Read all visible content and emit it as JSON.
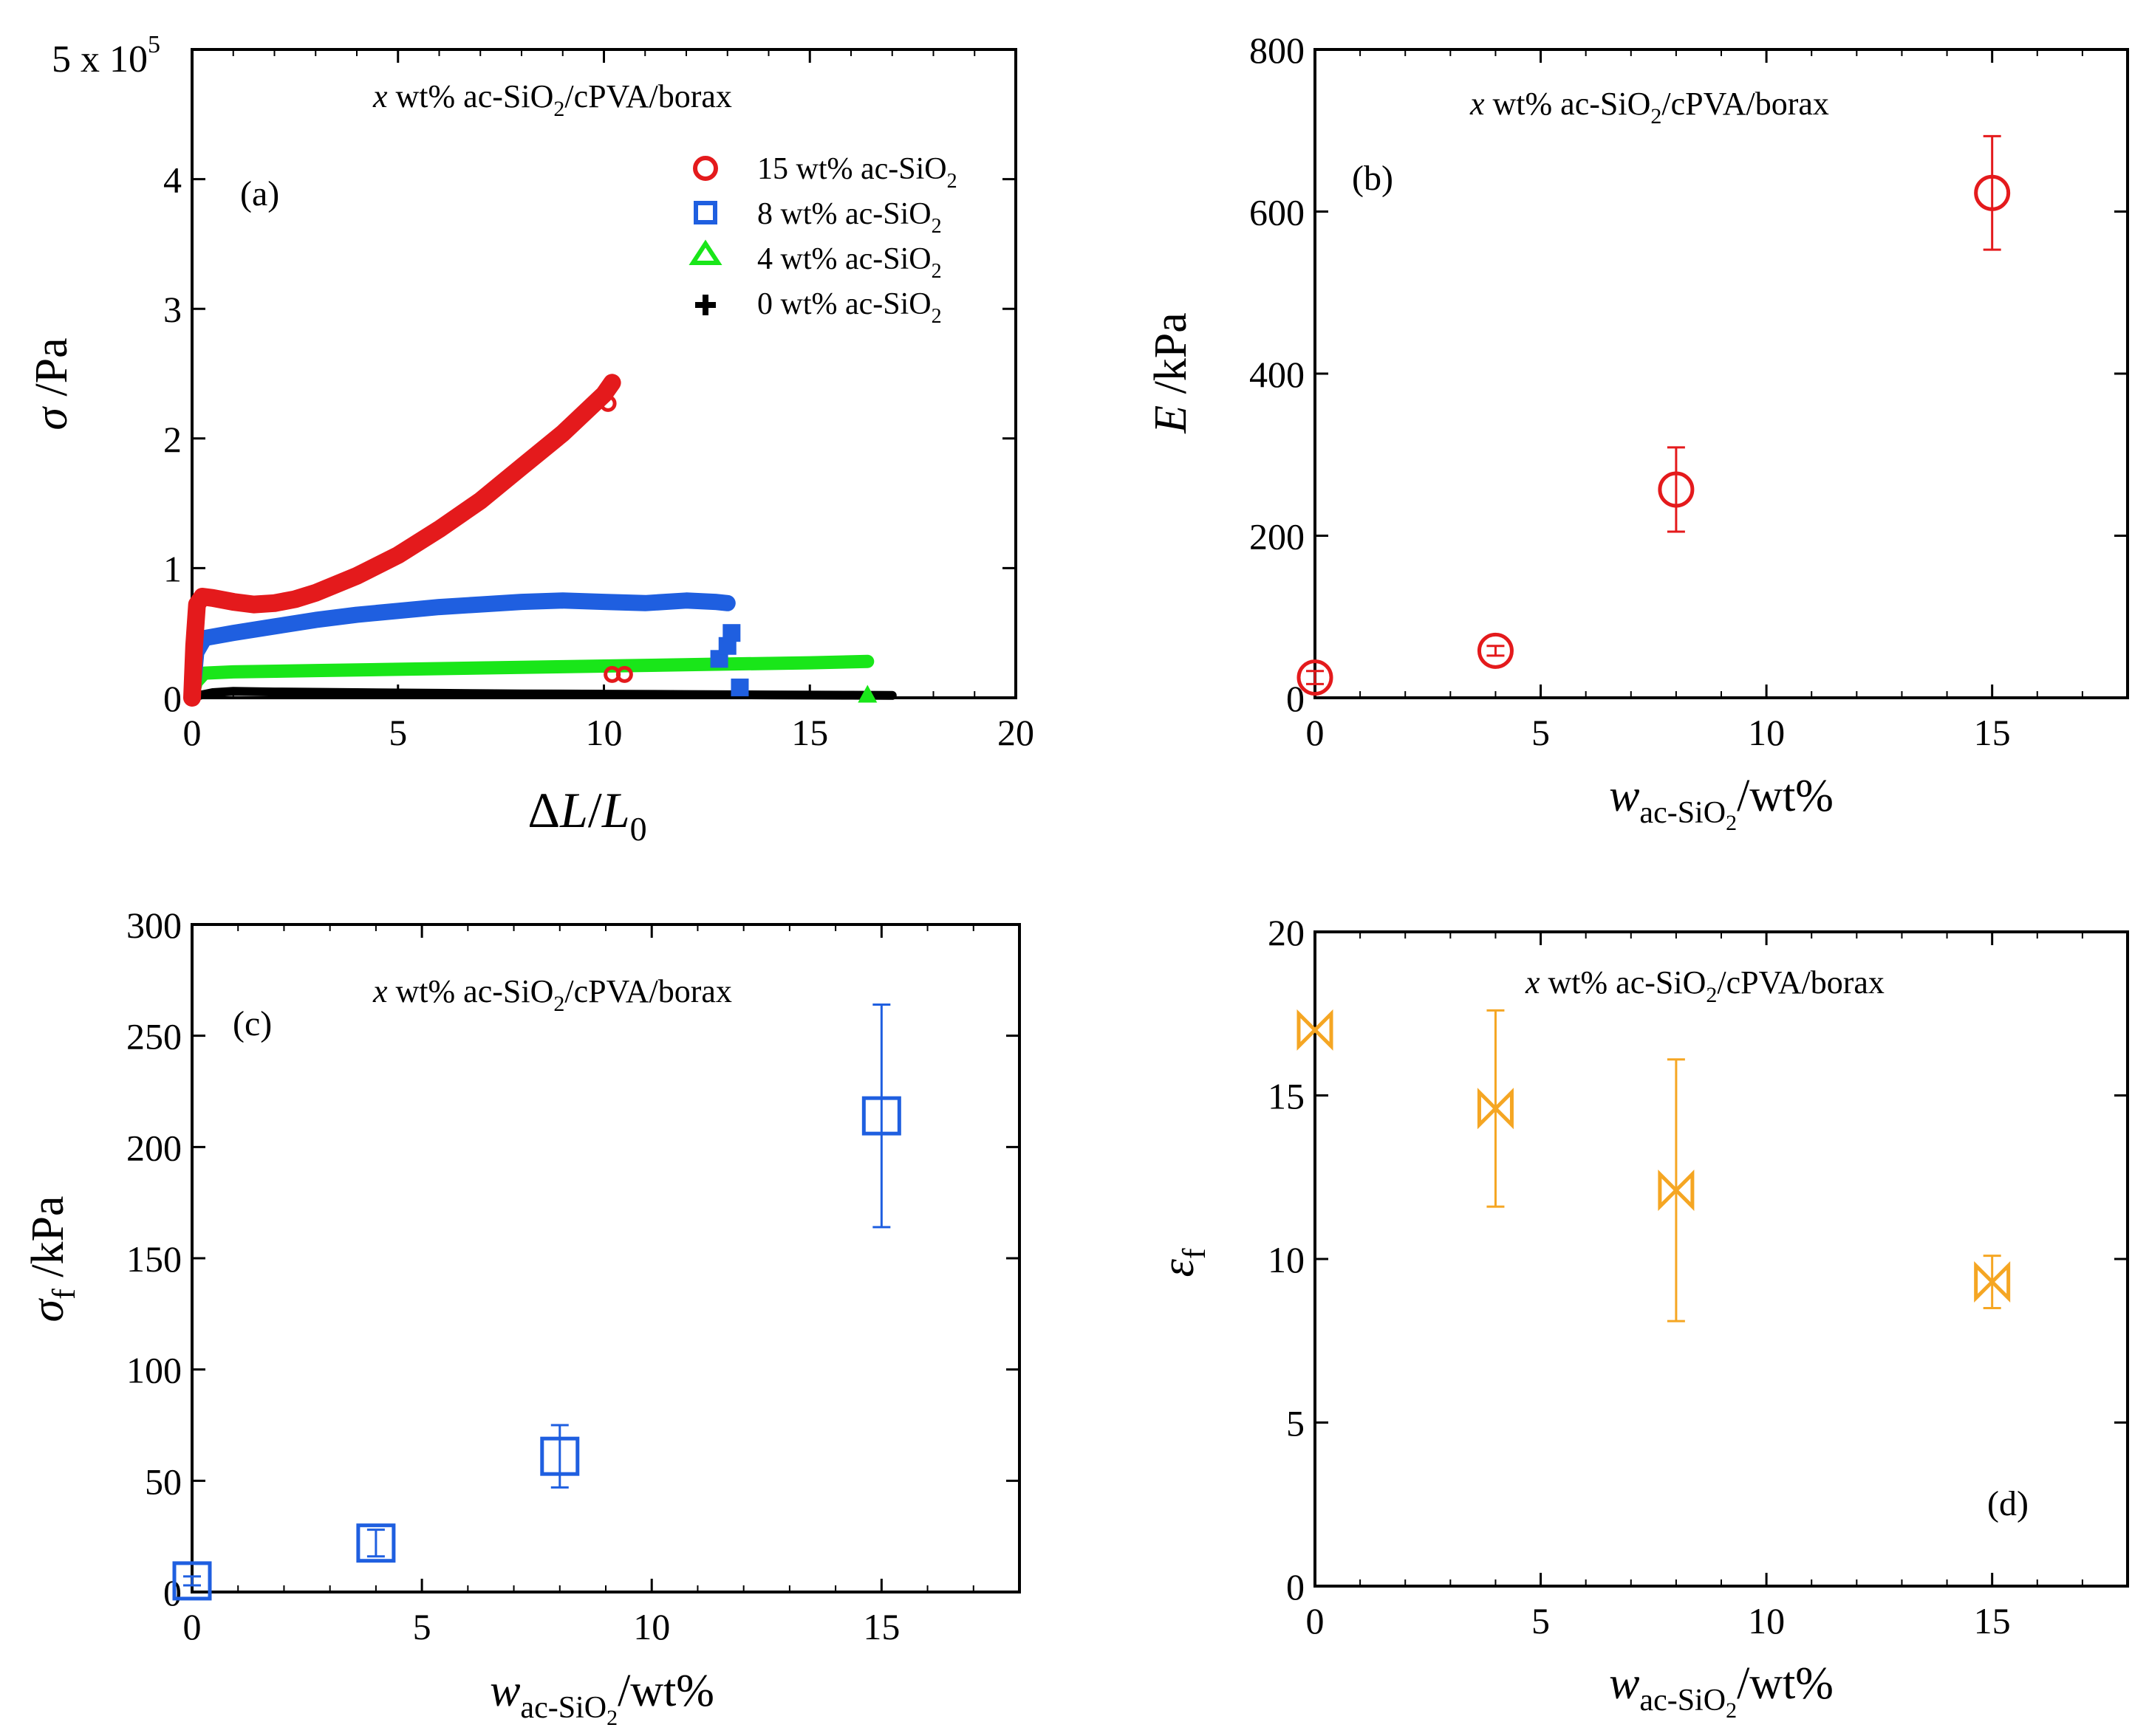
{
  "figure": {
    "sample_label_prefix": "x",
    "sample_label_rest": " wt% ac-SiO",
    "sample_label_sub": "2",
    "sample_label_tail": "/cPVA/borax",
    "wt_label_sub_text": "ac-SiO",
    "wt_label_sub_2": "2",
    "wt_label_tail": "/wt%"
  },
  "colors": {
    "red": "#e41a1c",
    "blue": "#1f5fe0",
    "green": "#19e619",
    "black": "#000000",
    "orange": "#f5a623"
  },
  "chart_data": [
    {
      "id": "a",
      "type": "line",
      "panel_label": "(a)",
      "xlabel": "ΔL/L0",
      "ylabel": "σ /Pa",
      "y_multiplier_label": "5 x 10",
      "y_multiplier_exp": "5",
      "xlim": [
        0,
        20
      ],
      "ylim": [
        0,
        500000
      ],
      "xticks": [
        "0",
        "5",
        "10",
        "15",
        "20"
      ],
      "yticks": [
        "0",
        "1",
        "2",
        "3",
        "4"
      ],
      "series": [
        {
          "name": "15 wt% ac-SiO2",
          "legend_text": "15 wt% ac-SiO",
          "legend_sub": "2",
          "color_key": "red",
          "marker": "circle",
          "x": [
            0,
            0.05,
            0.12,
            0.25,
            0.5,
            1,
            1.5,
            2,
            2.5,
            3,
            4,
            5,
            6,
            7,
            8,
            9,
            10,
            10.2
          ],
          "y": [
            0,
            40000,
            72000,
            78000,
            77000,
            74000,
            72000,
            73000,
            76000,
            81000,
            94000,
            110000,
            130000,
            152000,
            178000,
            204000,
            234000,
            243000
          ],
          "end_points": [
            {
              "x": 10.1,
              "y": 227000
            },
            {
              "x": 10.2,
              "y": 18000
            },
            {
              "x": 10.5,
              "y": 18000
            }
          ]
        },
        {
          "name": "8 wt% ac-SiO2",
          "legend_text": "8 wt% ac-SiO",
          "legend_sub": "2",
          "color_key": "blue",
          "marker": "square",
          "x": [
            0,
            0.1,
            0.3,
            1,
            2,
            3,
            4,
            5,
            6,
            7,
            8,
            9,
            10,
            11,
            12,
            12.7,
            13
          ],
          "y": [
            0,
            35000,
            46000,
            50000,
            55000,
            60000,
            64000,
            67000,
            70000,
            72000,
            74000,
            75000,
            74000,
            73000,
            75000,
            74000,
            73000
          ],
          "end_points": [
            {
              "x": 12.8,
              "y": 30000
            },
            {
              "x": 13,
              "y": 40000
            },
            {
              "x": 13.1,
              "y": 50000
            },
            {
              "x": 13.3,
              "y": 8000
            }
          ]
        },
        {
          "name": "4 wt% ac-SiO2",
          "legend_text": "4 wt% ac-SiO",
          "legend_sub": "2",
          "color_key": "green",
          "marker": "triangle",
          "x": [
            0,
            0.1,
            0.3,
            1,
            3,
            5,
            7,
            9,
            11,
            13,
            15,
            16.4
          ],
          "y": [
            0,
            12000,
            19000,
            20000,
            21000,
            22000,
            23000,
            24000,
            25000,
            26000,
            27000,
            28000
          ],
          "end_points": [
            {
              "x": 16.4,
              "y": 2000
            }
          ]
        },
        {
          "name": "0 wt% ac-SiO2",
          "legend_text": "0 wt% ac-SiO",
          "legend_sub": "2",
          "color_key": "black",
          "marker": "plus",
          "x": [
            0,
            0.2,
            0.5,
            1,
            2,
            4,
            6,
            8,
            10,
            12,
            14,
            16,
            17
          ],
          "y": [
            0,
            2000,
            4000,
            5000,
            4500,
            4000,
            3500,
            3000,
            2800,
            2500,
            2200,
            2000,
            1800
          ]
        }
      ]
    },
    {
      "id": "b",
      "type": "scatter",
      "panel_label": "(b)",
      "xlabel": "w ac-SiO2/wt%",
      "ylabel": "E /kPa",
      "xlim": [
        0,
        18
      ],
      "ylim": [
        0,
        800
      ],
      "xticks": [
        "0",
        "5",
        "10",
        "15"
      ],
      "yticks": [
        "0",
        "200",
        "400",
        "600",
        "800"
      ],
      "color_key": "red",
      "marker": "circle",
      "x": [
        0,
        4,
        8,
        15
      ],
      "y": [
        25,
        58,
        257,
        623
      ],
      "err": [
        8,
        6,
        52,
        70
      ]
    },
    {
      "id": "c",
      "type": "scatter",
      "panel_label": "(c)",
      "xlabel": "w ac-SiO2/wt%",
      "ylabel": "σf /kPa",
      "xlim": [
        0,
        18
      ],
      "ylim": [
        0,
        300
      ],
      "xticks": [
        "0",
        "5",
        "10",
        "15"
      ],
      "yticks": [
        "0",
        "50",
        "100",
        "150",
        "200",
        "250",
        "300"
      ],
      "color_key": "blue",
      "marker": "square",
      "x": [
        0,
        4,
        8,
        15
      ],
      "y": [
        5,
        22,
        61,
        214
      ],
      "err": [
        2,
        6,
        14,
        50
      ]
    },
    {
      "id": "d",
      "type": "scatter",
      "panel_label": "(d)",
      "xlabel": "w ac-SiO2/wt%",
      "ylabel": "εf",
      "xlim": [
        0,
        18
      ],
      "ylim": [
        0,
        20
      ],
      "xticks": [
        "0",
        "5",
        "10",
        "15"
      ],
      "yticks": [
        "0",
        "5",
        "10",
        "15",
        "20"
      ],
      "color_key": "orange",
      "marker": "bowtie",
      "x": [
        0,
        4,
        8,
        15
      ],
      "y": [
        17,
        14.6,
        12.1,
        9.3
      ],
      "err": [
        0,
        3,
        4,
        0.8
      ]
    }
  ]
}
